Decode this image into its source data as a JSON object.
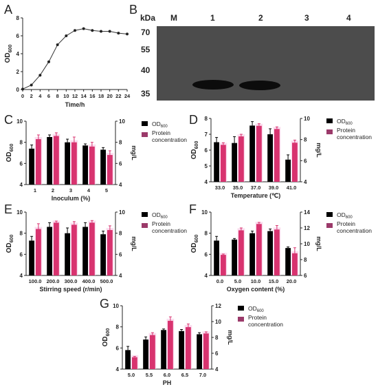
{
  "colors": {
    "od_bar": "#000000",
    "protein_bar": "#d8336f",
    "protein_alt": "#9b3a6a",
    "axis": "#222222",
    "blot_bg": "#4a4a4a",
    "blot_band": "#0c0c0c"
  },
  "panels": {
    "A": {
      "letter": "A"
    },
    "B": {
      "letter": "B",
      "kda_label": "kDa",
      "lanes": [
        "M",
        "1",
        "2",
        "3",
        "4"
      ],
      "markers": [
        "70",
        "55",
        "40",
        "35"
      ]
    },
    "C": {
      "letter": "C"
    },
    "D": {
      "letter": "D"
    },
    "E": {
      "letter": "E"
    },
    "F": {
      "letter": "F"
    },
    "G": {
      "letter": "G"
    }
  },
  "chart_data": [
    {
      "id": "A",
      "type": "line",
      "xlabel": "Time/h",
      "ylabel": "OD600",
      "x": [
        0,
        2,
        4,
        6,
        8,
        10,
        12,
        14,
        16,
        18,
        20,
        22,
        24
      ],
      "y": [
        0.05,
        0.5,
        1.6,
        3.1,
        5.0,
        6.0,
        6.6,
        6.8,
        6.6,
        6.5,
        6.5,
        6.3,
        6.2
      ],
      "xticks": [
        "0",
        "2",
        "4",
        "6",
        "8",
        "10",
        "12",
        "14",
        "16",
        "18",
        "20",
        "22",
        "24"
      ],
      "yticks": [
        "0",
        "2",
        "4",
        "6",
        "8"
      ],
      "xlim": [
        0,
        24
      ],
      "ylim": [
        0,
        8
      ]
    },
    {
      "id": "C",
      "type": "bar",
      "categories": [
        "1",
        "2",
        "3",
        "4",
        "5"
      ],
      "xlabel": "Inoculum (%)",
      "ylabel": "OD600",
      "ylabel_right": "mg/L",
      "yticks": [
        "4",
        "6",
        "8",
        "10"
      ],
      "yticks_right": [
        "4",
        "6",
        "8",
        "10"
      ],
      "ylim": [
        4,
        10
      ],
      "ylim_right": [
        4,
        10
      ],
      "legend": [
        "OD600",
        "Protein concentration"
      ],
      "series": [
        {
          "name": "OD600",
          "values": [
            7.4,
            8.5,
            8.0,
            7.7,
            7.3
          ],
          "err": [
            0.35,
            0.2,
            0.3,
            0.15,
            0.2
          ],
          "axis": "left"
        },
        {
          "name": "Protein concentration",
          "values": [
            8.3,
            8.6,
            8.0,
            7.6,
            6.8
          ],
          "err": [
            0.4,
            0.3,
            0.5,
            0.4,
            0.4
          ],
          "axis": "right"
        }
      ]
    },
    {
      "id": "D",
      "type": "bar",
      "categories": [
        "33.0",
        "35.0",
        "37.0",
        "39.0",
        "41.0"
      ],
      "xlabel": "Temperature (℃)",
      "ylabel": "OD600",
      "ylabel_right": "mg/L",
      "yticks": [
        "4",
        "5",
        "6",
        "7",
        "8"
      ],
      "yticks_right": [
        "4",
        "6",
        "8",
        "10"
      ],
      "ylim": [
        4,
        8
      ],
      "ylim_right": [
        4,
        10
      ],
      "legend": [
        "OD600",
        "Protein concentration"
      ],
      "series": [
        {
          "name": "OD600",
          "values": [
            6.5,
            6.45,
            7.55,
            7.0,
            5.4
          ],
          "err": [
            0.3,
            0.4,
            0.25,
            0.35,
            0.3
          ],
          "axis": "left"
        },
        {
          "name": "Protein concentration",
          "values": [
            7.5,
            8.3,
            9.3,
            9.0,
            7.7
          ],
          "err": [
            0.2,
            0.2,
            0.2,
            0.2,
            0.25
          ],
          "axis": "right"
        }
      ]
    },
    {
      "id": "E",
      "type": "bar",
      "categories": [
        "100.0",
        "200.0",
        "300.0",
        "400.0",
        "500.0"
      ],
      "xlabel": "Stirring speed (r/min)",
      "ylabel": "OD600",
      "ylabel_right": "mg/L",
      "yticks": [
        "4",
        "6",
        "8",
        "10"
      ],
      "yticks_right": [
        "4",
        "6",
        "8",
        "10"
      ],
      "ylim": [
        4,
        10
      ],
      "ylim_right": [
        4,
        10
      ],
      "legend": [
        "OD600",
        "Protein concentration"
      ],
      "series": [
        {
          "name": "OD600",
          "values": [
            7.3,
            8.6,
            8.0,
            8.6,
            7.9
          ],
          "err": [
            0.4,
            0.4,
            0.5,
            0.4,
            0.3
          ],
          "axis": "left"
        },
        {
          "name": "Protein concentration",
          "values": [
            8.4,
            9.0,
            8.8,
            9.0,
            8.3
          ],
          "err": [
            0.5,
            0.15,
            0.3,
            0.2,
            0.4
          ],
          "axis": "right"
        }
      ]
    },
    {
      "id": "F",
      "type": "bar",
      "categories": [
        "0.0",
        "5.0",
        "10.0",
        "15.0",
        "20.0"
      ],
      "xlabel": "Oxygen content (%)",
      "ylabel": "OD600",
      "ylabel_right": "mg/L",
      "yticks": [
        "4",
        "6",
        "8",
        "10"
      ],
      "yticks_right": [
        "6",
        "8",
        "10",
        "12",
        "14"
      ],
      "ylim": [
        4,
        10
      ],
      "ylim_right": [
        6,
        14
      ],
      "legend": [
        "OD600",
        "Protein concentration"
      ],
      "series": [
        {
          "name": "OD600",
          "values": [
            7.3,
            7.4,
            8.0,
            8.2,
            6.6
          ],
          "err": [
            0.4,
            0.1,
            0.2,
            0.2,
            0.1
          ],
          "axis": "left"
        },
        {
          "name": "Protein concentration",
          "values": [
            8.6,
            11.7,
            12.5,
            11.8,
            8.8
          ],
          "err": [
            0.1,
            0.3,
            0.2,
            0.5,
            0.7
          ],
          "axis": "right"
        }
      ]
    },
    {
      "id": "G",
      "type": "bar",
      "categories": [
        "5.0",
        "5.5",
        "6.0",
        "6.5",
        "7.0"
      ],
      "xlabel": "PH",
      "ylabel": "OD600",
      "ylabel_right": "mg/L",
      "yticks": [
        "4",
        "6",
        "8",
        "10"
      ],
      "yticks_right": [
        "4",
        "6",
        "8",
        "10",
        "12"
      ],
      "ylim": [
        4,
        10
      ],
      "ylim_right": [
        4,
        12
      ],
      "legend": [
        "OD600",
        "Protein concentration"
      ],
      "series": [
        {
          "name": "OD600",
          "values": [
            5.8,
            6.8,
            7.7,
            7.6,
            7.3
          ],
          "err": [
            0.35,
            0.25,
            0.1,
            0.15,
            0.15
          ],
          "axis": "left"
        },
        {
          "name": "Protein concentration",
          "values": [
            5.5,
            8.3,
            10.1,
            9.3,
            8.5
          ],
          "err": [
            0.1,
            0.3,
            0.5,
            0.4,
            0.2
          ],
          "axis": "right"
        }
      ]
    }
  ]
}
